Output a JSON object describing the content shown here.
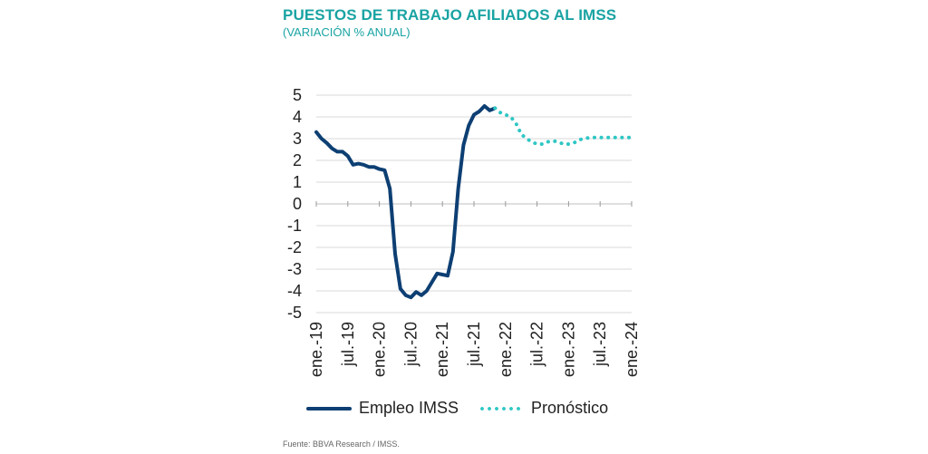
{
  "chart_data": {
    "type": "line",
    "title": "PUESTOS DE TRABAJO AFILIADOS AL IMSS",
    "subtitle": "(VARIACIÓN % ANUAL)",
    "source": "Fuente: BBVA Research / IMSS.",
    "x_tick_labels": [
      "ene.-19",
      "jul.-19",
      "ene.-20",
      "jul.-20",
      "ene.-21",
      "jul.-21",
      "ene.-22",
      "jul.-22",
      "ene.-23",
      "jul.-23",
      "ene.-24"
    ],
    "x_range_months": [
      "2019-01",
      "2024-01"
    ],
    "ylim": [
      -5,
      5
    ],
    "y_ticks": [
      5,
      4,
      3,
      2,
      1,
      0,
      -1,
      -2,
      -3,
      -4,
      -5
    ],
    "grid": true,
    "legend_position": "bottom",
    "series": [
      {
        "name": "Empleo IMSS",
        "style": "solid",
        "color": "#0d3f73",
        "x": [
          "2019-01",
          "2019-02",
          "2019-03",
          "2019-04",
          "2019-05",
          "2019-06",
          "2019-07",
          "2019-08",
          "2019-09",
          "2019-10",
          "2019-11",
          "2019-12",
          "2020-01",
          "2020-02",
          "2020-03",
          "2020-04",
          "2020-05",
          "2020-06",
          "2020-07",
          "2020-08",
          "2020-09",
          "2020-10",
          "2020-11",
          "2020-12",
          "2021-01",
          "2021-02",
          "2021-03",
          "2021-04",
          "2021-05",
          "2021-06",
          "2021-07",
          "2021-08",
          "2021-09",
          "2021-10",
          "2021-11"
        ],
        "values": [
          3.3,
          3.0,
          2.8,
          2.55,
          2.4,
          2.4,
          2.2,
          1.8,
          1.85,
          1.8,
          1.7,
          1.7,
          1.6,
          1.55,
          0.7,
          -2.3,
          -3.9,
          -4.2,
          -4.3,
          -4.05,
          -4.2,
          -4.0,
          -3.6,
          -3.2,
          -3.25,
          -3.3,
          -2.2,
          0.7,
          2.7,
          3.6,
          4.1,
          4.25,
          4.5,
          4.3,
          4.4
        ]
      },
      {
        "name": "Pronóstico",
        "style": "dotted",
        "color": "#2fc7c4",
        "x": [
          "2021-11",
          "2021-12",
          "2022-01",
          "2022-02",
          "2022-03",
          "2022-04",
          "2022-05",
          "2022-06",
          "2022-07",
          "2022-08",
          "2022-09",
          "2022-10",
          "2022-11",
          "2022-12",
          "2023-01",
          "2023-02",
          "2023-03",
          "2023-04",
          "2023-05",
          "2023-06",
          "2023-07",
          "2023-08",
          "2023-09",
          "2023-10",
          "2023-11",
          "2023-12",
          "2024-01"
        ],
        "values": [
          4.4,
          4.2,
          4.1,
          4.0,
          3.7,
          3.2,
          3.0,
          2.85,
          2.75,
          2.75,
          2.85,
          2.9,
          2.85,
          2.75,
          2.75,
          2.8,
          2.95,
          3.0,
          3.05,
          3.05,
          3.05,
          3.05,
          3.05,
          3.05,
          3.05,
          3.05,
          3.05
        ]
      }
    ]
  }
}
